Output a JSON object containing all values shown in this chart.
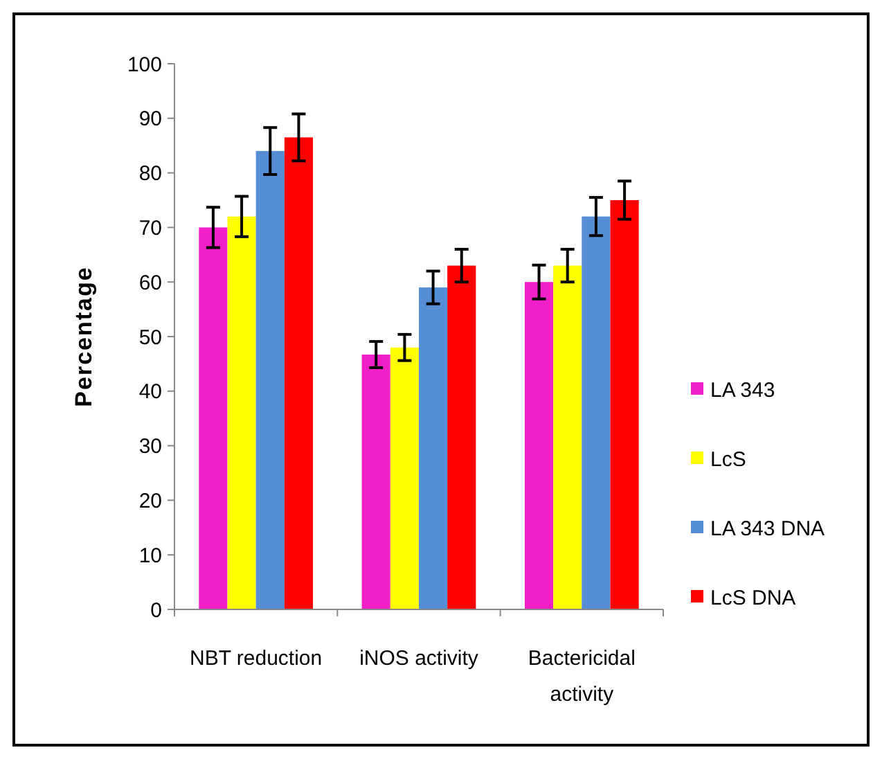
{
  "chart_data": {
    "type": "bar",
    "ylabel": "Percentage",
    "categories": [
      "NBT reduction",
      "iNOS activity",
      "Bactericidal activity"
    ],
    "series": [
      {
        "name": "LA 343",
        "color": "#f01fc8",
        "values": [
          70,
          46.7,
          60
        ],
        "errors": [
          3.7,
          2.4,
          3.1
        ]
      },
      {
        "name": "LcS",
        "color": "#ffff00",
        "values": [
          72,
          48,
          63
        ],
        "errors": [
          3.7,
          2.4,
          3
        ]
      },
      {
        "name": "LA 343 DNA",
        "color": "#558ed5",
        "values": [
          84,
          59,
          72
        ],
        "errors": [
          4.3,
          3,
          3.5
        ]
      },
      {
        "name": "LcS DNA",
        "color": "#ff0000",
        "values": [
          86.5,
          63,
          75
        ],
        "errors": [
          4.3,
          3,
          3.5
        ]
      }
    ],
    "ylim": [
      0,
      100
    ],
    "yticks": [
      0,
      10,
      20,
      30,
      40,
      50,
      60,
      70,
      80,
      90,
      100
    ],
    "legend": "right",
    "grid": false
  }
}
